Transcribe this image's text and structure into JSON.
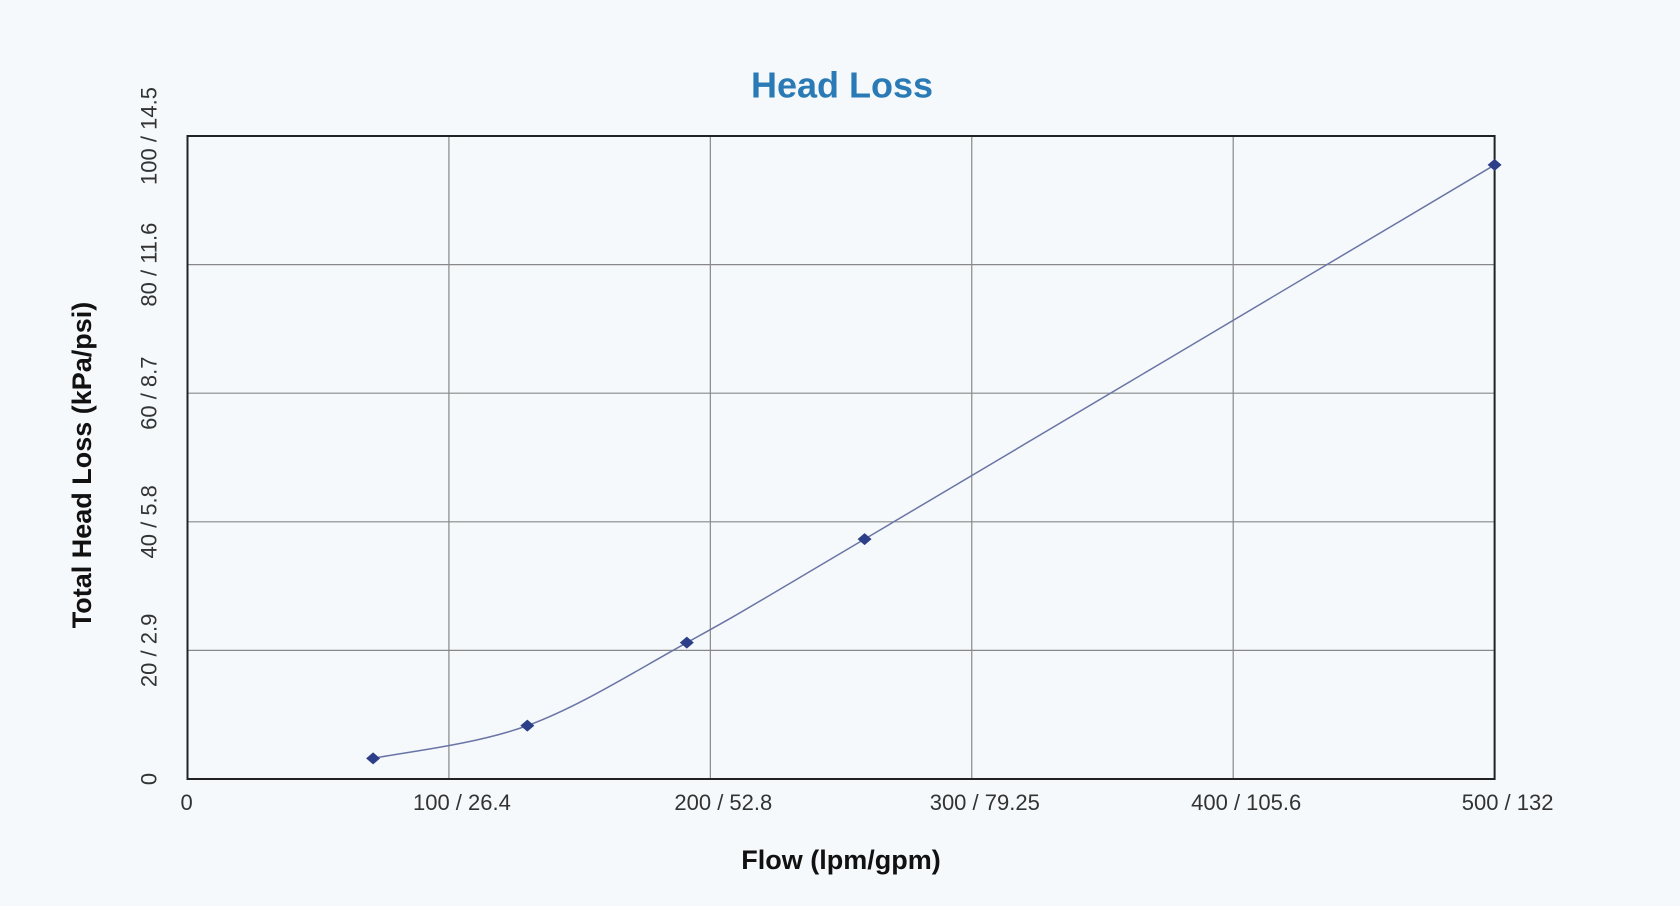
{
  "chart_data": {
    "type": "line",
    "title": "Head Loss",
    "x_label": "Flow (lpm/gpm)",
    "y_label": "Total Head Loss (kPa/psi)",
    "x": [
      71,
      130,
      191,
      259,
      500
    ],
    "series": [
      {
        "color": "#2e3f8a",
        "values": [
          3.2,
          8.3,
          21.2,
          37.3,
          95.5
        ]
      }
    ],
    "xlim": [
      0,
      500
    ],
    "xticks": [
      0,
      {
        "value": 100,
        "label": "100 / 26.4"
      },
      {
        "value": 200,
        "label": "200 / 52.8"
      },
      {
        "value": 300,
        "label": "300 / 79.25"
      },
      {
        "value": 400,
        "label": "400 / 105.6"
      },
      {
        "value": 500,
        "label": "500 / 132"
      }
    ],
    "ylim": [
      0,
      100
    ],
    "yticks": [
      0,
      {
        "value": 20,
        "label": "20 / 2.9"
      },
      {
        "value": 40,
        "label": "40 / 5.8"
      },
      {
        "value": 60,
        "label": "60 / 8.7"
      },
      {
        "value": 80,
        "label": "80 / 11.6"
      },
      {
        "value": 100,
        "label": "100 / 14.5"
      }
    ],
    "grid": true
  }
}
